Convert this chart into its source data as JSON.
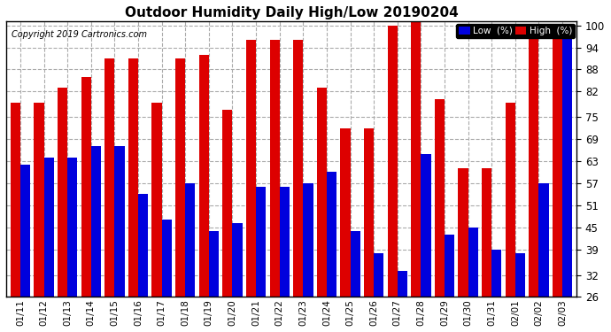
{
  "title": "Outdoor Humidity Daily High/Low 20190204",
  "copyright": "Copyright 2019 Cartronics.com",
  "legend_low": "Low  (%)",
  "legend_high": "High  (%)",
  "low_color": "#0000dd",
  "high_color": "#dd0000",
  "background_color": "#ffffff",
  "plot_bg_color": "#ffffff",
  "grid_color": "#aaaaaa",
  "ylim": [
    26,
    101
  ],
  "yticks": [
    26,
    32,
    39,
    45,
    51,
    57,
    63,
    69,
    75,
    82,
    88,
    94,
    100
  ],
  "categories": [
    "01/11",
    "01/12",
    "01/13",
    "01/14",
    "01/15",
    "01/16",
    "01/17",
    "01/18",
    "01/19",
    "01/20",
    "01/21",
    "01/22",
    "01/23",
    "01/24",
    "01/25",
    "01/26",
    "01/27",
    "01/28",
    "01/29",
    "01/30",
    "01/31",
    "02/01",
    "02/02",
    "02/03"
  ],
  "high_values": [
    79,
    79,
    83,
    86,
    91,
    91,
    79,
    91,
    92,
    77,
    96,
    96,
    96,
    83,
    72,
    72,
    100,
    101,
    80,
    61,
    61,
    79,
    98,
    100
  ],
  "low_values": [
    62,
    64,
    64,
    67,
    67,
    54,
    47,
    57,
    44,
    46,
    56,
    56,
    57,
    60,
    44,
    38,
    33,
    65,
    43,
    45,
    39,
    38,
    57,
    99
  ]
}
